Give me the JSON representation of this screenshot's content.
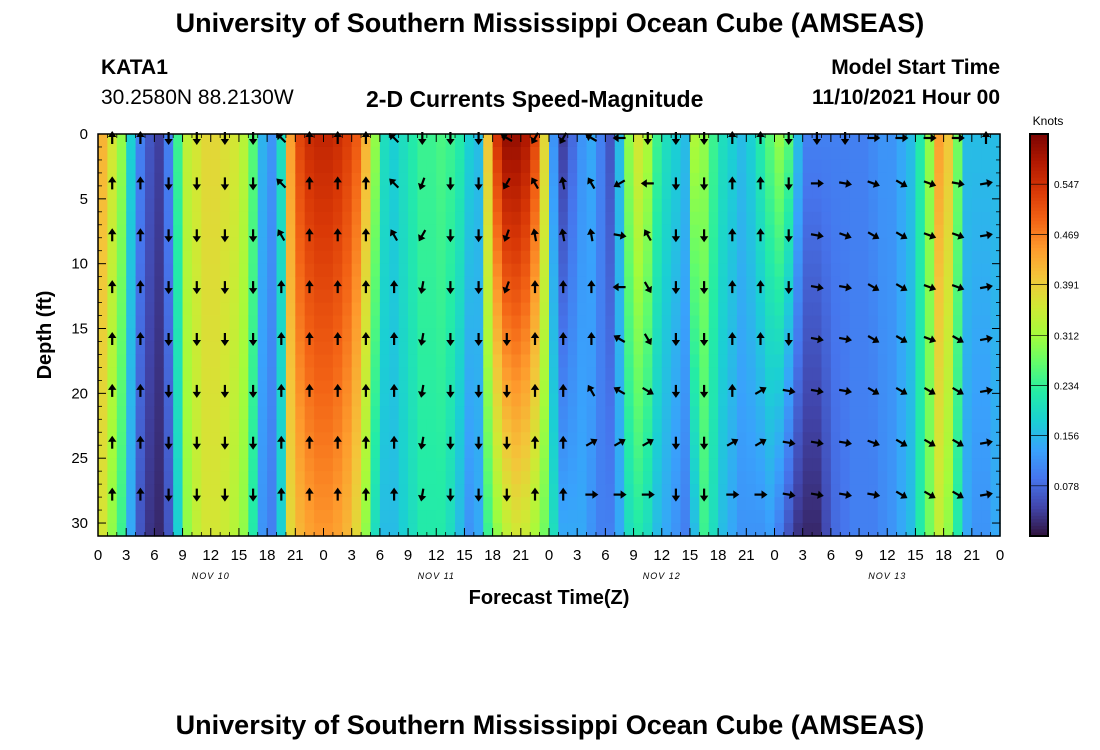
{
  "header": {
    "title": "University of Southern Mississippi Ocean Cube (AMSEAS)",
    "station_id": "KATA1",
    "station_coords": "30.2580N  88.2130W",
    "product": "2-D Currents Speed-Magnitude",
    "model_start_label": "Model Start Time",
    "model_start_value": "11/10/2021 Hour 00"
  },
  "footer": {
    "title": "University of Southern Mississippi Ocean Cube (AMSEAS)"
  },
  "colors": {
    "ramp": [
      "#30123b",
      "#4145ab",
      "#4675ed",
      "#39a2fc",
      "#1bcfd4",
      "#24eca6",
      "#61fc6c",
      "#a4fc3b",
      "#d1e834",
      "#f3c63a",
      "#fe9b2d",
      "#f36315",
      "#d93806",
      "#b11901",
      "#7a0402"
    ]
  },
  "chart_data": {
    "type": "heatmap",
    "title": "2-D Currents Speed-Magnitude",
    "xlabel": "Forecast Time(Z)",
    "ylabel": "Depth (ft)",
    "ylim": [
      0,
      31
    ],
    "y_ticks": [
      "0",
      "5",
      "10",
      "15",
      "20",
      "25",
      "30"
    ],
    "y_tick_values": [
      0,
      5,
      10,
      15,
      20,
      25,
      30
    ],
    "x_ticks": [
      "0",
      "3",
      "6",
      "9",
      "12",
      "15",
      "18",
      "21",
      "0",
      "3",
      "6",
      "9",
      "12",
      "15",
      "18",
      "21",
      "0",
      "3",
      "6",
      "9",
      "12",
      "15",
      "18",
      "21",
      "0",
      "3",
      "6",
      "9",
      "12",
      "15",
      "18",
      "21",
      "0"
    ],
    "x_hours": [
      0,
      96
    ],
    "day_labels": [
      "NOV 10",
      "NOV 11",
      "NOV 12",
      "NOV 13"
    ],
    "day_label_hours": [
      12,
      36,
      60,
      84
    ],
    "colorbar": {
      "title": "Knots",
      "range": [
        0,
        0.625
      ],
      "tick_labels": [
        "0.078",
        "0.156",
        "0.234",
        "0.312",
        "0.391",
        "0.469",
        "0.547"
      ],
      "tick_values": [
        0.078,
        0.156,
        0.234,
        0.312,
        0.391,
        0.469,
        0.547
      ]
    },
    "speed_profile": {
      "hours": [
        0,
        1,
        2,
        3,
        4,
        5,
        6,
        7,
        8,
        9,
        10,
        11,
        12,
        13,
        14,
        15,
        16,
        17,
        18,
        19,
        20,
        21,
        22,
        23,
        24,
        25,
        26,
        27,
        28,
        29,
        30,
        31,
        32,
        33,
        34,
        35,
        36,
        37,
        38,
        39,
        40,
        41,
        42,
        43,
        44,
        45,
        46,
        47,
        48,
        49,
        50,
        51,
        52,
        53,
        54,
        55,
        56,
        57,
        58,
        59,
        60,
        61,
        62,
        63,
        64,
        65,
        66,
        67,
        68,
        69,
        70,
        71,
        72,
        73,
        74,
        75,
        76,
        77,
        78,
        79,
        80,
        81,
        82,
        83,
        84,
        85,
        86,
        87,
        88,
        89,
        90,
        91,
        92,
        93,
        94,
        95,
        96
      ],
      "surface": [
        0.42,
        0.36,
        0.3,
        0.18,
        0.1,
        0.06,
        0.04,
        0.1,
        0.24,
        0.34,
        0.36,
        0.38,
        0.38,
        0.37,
        0.36,
        0.33,
        0.26,
        0.15,
        0.12,
        0.2,
        0.44,
        0.52,
        0.55,
        0.56,
        0.56,
        0.55,
        0.53,
        0.5,
        0.42,
        0.3,
        0.2,
        0.18,
        0.2,
        0.22,
        0.24,
        0.24,
        0.25,
        0.24,
        0.22,
        0.18,
        0.16,
        0.4,
        0.54,
        0.6,
        0.6,
        0.58,
        0.52,
        0.38,
        0.12,
        0.04,
        0.08,
        0.12,
        0.14,
        0.1,
        0.06,
        0.16,
        0.3,
        0.36,
        0.32,
        0.24,
        0.2,
        0.18,
        0.16,
        0.32,
        0.3,
        0.24,
        0.2,
        0.18,
        0.16,
        0.18,
        0.22,
        0.26,
        0.3,
        0.26,
        0.16,
        0.1,
        0.1,
        0.1,
        0.1,
        0.1,
        0.1,
        0.1,
        0.11,
        0.12,
        0.12,
        0.14,
        0.16,
        0.22,
        0.3,
        0.44,
        0.4,
        0.28,
        0.16,
        0.16,
        0.16,
        0.16,
        0.18
      ],
      "bottom": [
        0.36,
        0.3,
        0.24,
        0.14,
        0.06,
        0.03,
        0.02,
        0.06,
        0.18,
        0.3,
        0.34,
        0.36,
        0.36,
        0.35,
        0.33,
        0.3,
        0.22,
        0.12,
        0.1,
        0.18,
        0.38,
        0.42,
        0.44,
        0.45,
        0.45,
        0.44,
        0.42,
        0.38,
        0.3,
        0.2,
        0.16,
        0.16,
        0.18,
        0.2,
        0.22,
        0.22,
        0.22,
        0.2,
        0.16,
        0.12,
        0.14,
        0.24,
        0.3,
        0.34,
        0.36,
        0.35,
        0.32,
        0.28,
        0.2,
        0.14,
        0.14,
        0.14,
        0.12,
        0.1,
        0.1,
        0.14,
        0.2,
        0.22,
        0.2,
        0.16,
        0.14,
        0.12,
        0.1,
        0.16,
        0.24,
        0.2,
        0.16,
        0.14,
        0.12,
        0.12,
        0.12,
        0.13,
        0.1,
        0.06,
        0.03,
        0.02,
        0.02,
        0.05,
        0.08,
        0.09,
        0.1,
        0.1,
        0.1,
        0.11,
        0.12,
        0.14,
        0.16,
        0.22,
        0.28,
        0.34,
        0.3,
        0.22,
        0.14,
        0.12,
        0.12,
        0.14,
        0.16
      ]
    },
    "vector_hours": [
      3,
      6,
      9,
      12,
      15,
      18,
      21,
      24,
      27,
      30,
      33,
      36,
      39,
      42,
      45,
      48,
      51,
      54,
      57,
      60,
      63,
      66,
      69,
      72,
      75,
      78,
      81,
      84,
      87,
      90,
      93,
      96
    ],
    "vector_depths": [
      0,
      3.5,
      7.5,
      11.5,
      15.5,
      19.5,
      23.5,
      27.5
    ],
    "vector_dirs_deg": [
      [
        0,
        0,
        180,
        180,
        180,
        180,
        315,
        0,
        0,
        0,
        315,
        180,
        180,
        180,
        300,
        210,
        210,
        300,
        270,
        180,
        180,
        180,
        0,
        0,
        180,
        180,
        180,
        90,
        90,
        90,
        90,
        0
      ],
      [
        0,
        0,
        180,
        180,
        180,
        180,
        315,
        0,
        0,
        0,
        315,
        200,
        180,
        180,
        210,
        330,
        350,
        330,
        240,
        270,
        180,
        180,
        0,
        0,
        180,
        90,
        100,
        110,
        120,
        110,
        100,
        80
      ],
      [
        0,
        0,
        180,
        180,
        180,
        180,
        330,
        0,
        0,
        0,
        330,
        210,
        180,
        180,
        200,
        350,
        350,
        350,
        100,
        330,
        180,
        180,
        0,
        0,
        180,
        100,
        110,
        120,
        120,
        110,
        110,
        80
      ],
      [
        0,
        0,
        180,
        180,
        180,
        180,
        0,
        0,
        0,
        0,
        0,
        190,
        180,
        180,
        200,
        0,
        0,
        0,
        270,
        150,
        180,
        180,
        0,
        0,
        180,
        100,
        100,
        120,
        120,
        110,
        110,
        80
      ],
      [
        0,
        0,
        180,
        180,
        180,
        180,
        0,
        0,
        0,
        0,
        0,
        190,
        180,
        180,
        180,
        0,
        0,
        0,
        300,
        150,
        180,
        180,
        0,
        0,
        180,
        100,
        100,
        120,
        120,
        110,
        120,
        80
      ],
      [
        0,
        0,
        180,
        180,
        180,
        180,
        0,
        0,
        0,
        0,
        0,
        190,
        180,
        180,
        180,
        0,
        0,
        330,
        300,
        120,
        180,
        180,
        0,
        60,
        100,
        100,
        100,
        120,
        120,
        120,
        120,
        80
      ],
      [
        0,
        0,
        180,
        180,
        180,
        180,
        0,
        0,
        0,
        0,
        0,
        190,
        180,
        180,
        180,
        0,
        0,
        60,
        60,
        60,
        180,
        180,
        60,
        60,
        100,
        100,
        100,
        110,
        120,
        120,
        120,
        80
      ],
      [
        0,
        0,
        180,
        180,
        180,
        180,
        0,
        0,
        0,
        0,
        0,
        190,
        180,
        180,
        180,
        0,
        0,
        90,
        90,
        90,
        180,
        180,
        90,
        90,
        100,
        100,
        100,
        100,
        120,
        120,
        120,
        80
      ]
    ]
  }
}
